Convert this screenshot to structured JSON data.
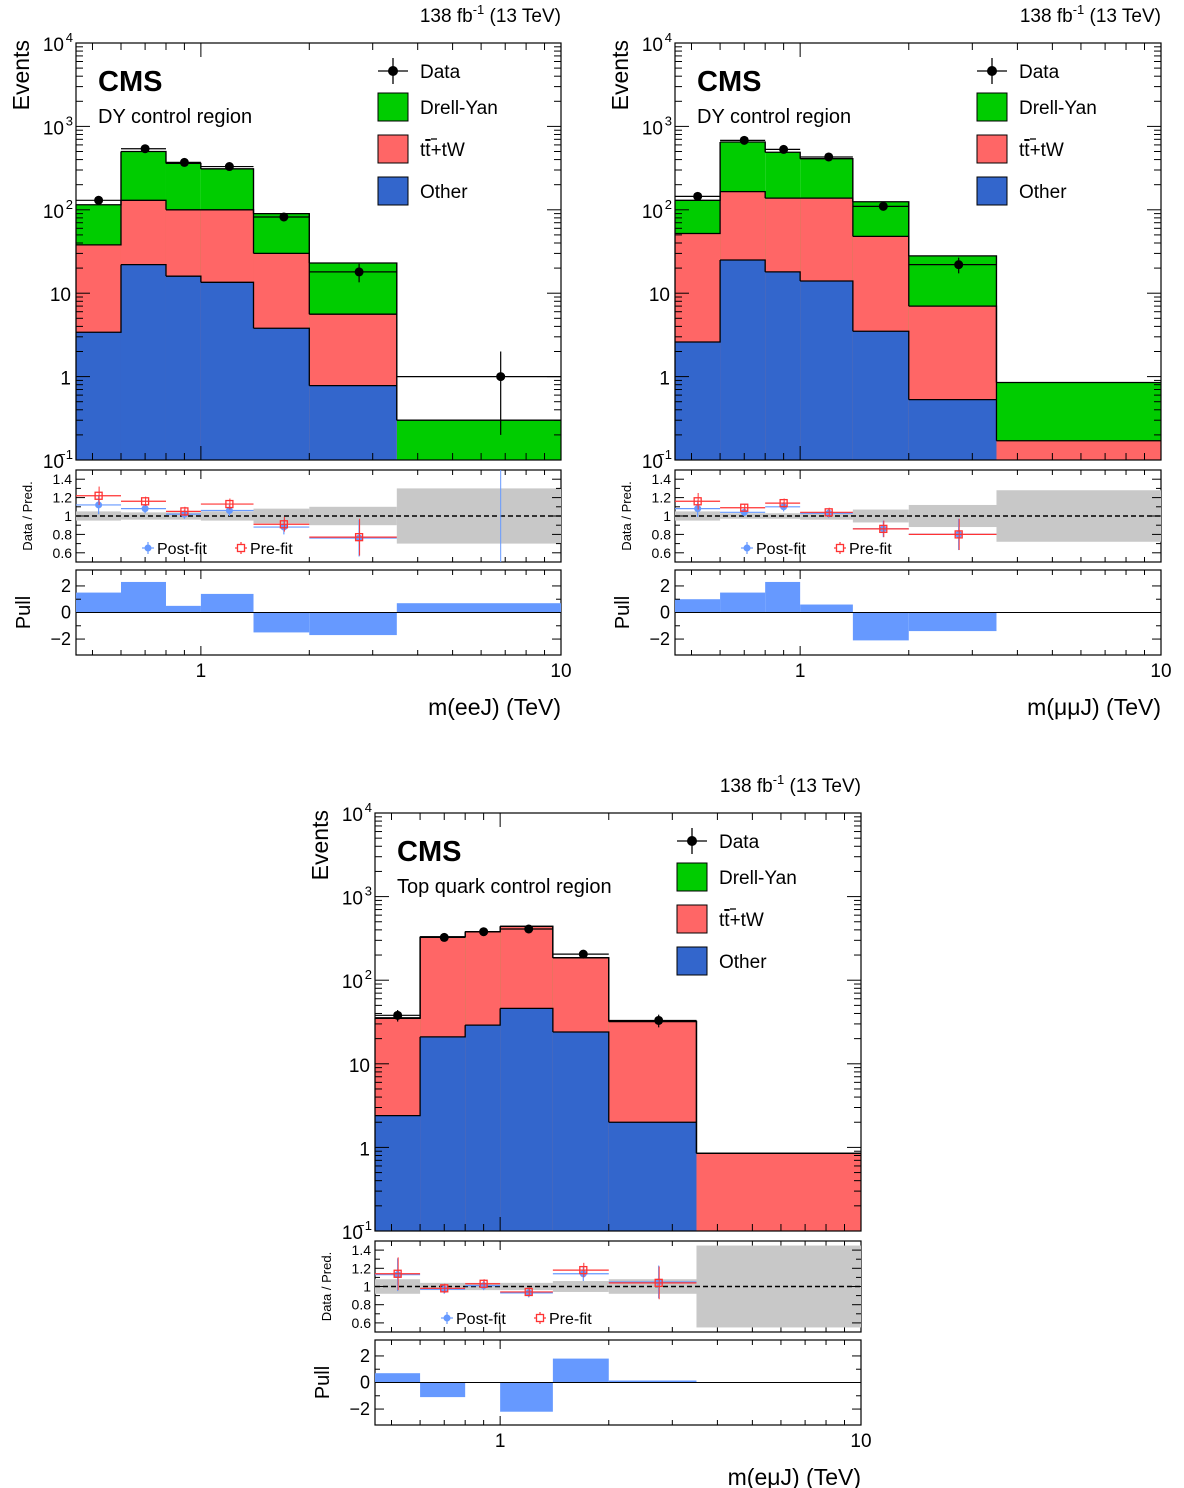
{
  "colors": {
    "drell_yan": "#00cc00",
    "ttbar_tw": "#ff6666",
    "other": "#3366cc",
    "data": "#000000",
    "post_fit": "#6699ff",
    "pre_fit": "#ff3333",
    "unc_band": "#c8c8c8"
  },
  "chart_data": [
    {
      "type": "stacked_histogram",
      "lumi_text": "138 fb",
      "lumi_sup": "-1",
      "energy_text": " (13 TeV)",
      "cms_label": "CMS",
      "region": "DY control region",
      "ylabel": "Events",
      "xlabel": "m(eeJ) (TeV)",
      "ratio_ylabel": "Data / Pred.",
      "pull_ylabel": "Pull",
      "x_scale": "log",
      "y_scale": "log",
      "xlim": [
        0.45,
        10
      ],
      "ylim": [
        0.1,
        10000
      ],
      "ratio_ylim": [
        0.5,
        1.5
      ],
      "pull_ylim": [
        -3.2,
        3.2
      ],
      "legend": {
        "data": "Data",
        "dy": "Drell-Yan",
        "tt_pre": "t",
        "tt_bar": "t",
        "tt_post": "+tW",
        "other": "Other"
      },
      "ratio_legend": {
        "post": "Post-fit",
        "pre": "Pre-fit"
      },
      "bins": [
        0.45,
        0.6,
        0.8,
        1.0,
        1.4,
        2.0,
        3.5,
        10.0
      ],
      "stack": {
        "other": [
          3.4,
          22,
          16,
          13.5,
          3.8,
          0.78,
          0
        ],
        "ttbar_tw": [
          38,
          130,
          100,
          100,
          30,
          5.6,
          0
        ],
        "drell_yan": [
          115,
          500,
          360,
          310,
          90,
          23,
          0.3
        ]
      },
      "data": {
        "x": [
          0.52,
          0.7,
          0.9,
          1.2,
          1.7,
          2.75,
          6.8
        ],
        "y": [
          130,
          540,
          370,
          330,
          82,
          18,
          1
        ],
        "yerr_lo": [
          12,
          24,
          19,
          18,
          9,
          4.5,
          0.8
        ],
        "yerr_hi": [
          12,
          24,
          19,
          18,
          9,
          4.5,
          1.0
        ],
        "xerr_bins": [
          0,
          1,
          2,
          3,
          4,
          5,
          6
        ]
      },
      "ratio": {
        "post": [
          1.12,
          1.08,
          1.02,
          1.06,
          0.88,
          0.76,
          null
        ],
        "pre": [
          1.22,
          1.16,
          1.05,
          1.13,
          0.91,
          0.77,
          null
        ],
        "err": [
          0.1,
          0.05,
          0.05,
          0.06,
          0.08,
          0.2,
          null
        ],
        "band": [
          0.05,
          0.04,
          0.04,
          0.05,
          0.08,
          0.1,
          0.3
        ]
      },
      "pull": [
        1.5,
        2.3,
        0.5,
        1.4,
        -1.5,
        -1.7,
        0.7
      ],
      "x_ticks": [
        1,
        10
      ],
      "x_tick_labels": [
        "1",
        "10"
      ]
    },
    {
      "type": "stacked_histogram",
      "lumi_text": "138 fb",
      "lumi_sup": "-1",
      "energy_text": " (13 TeV)",
      "cms_label": "CMS",
      "region": "DY control region",
      "ylabel": "Events",
      "xlabel": "m(μμJ) (TeV)",
      "ratio_ylabel": "Data / Pred.",
      "pull_ylabel": "Pull",
      "x_scale": "log",
      "y_scale": "log",
      "xlim": [
        0.45,
        10
      ],
      "ylim": [
        0.1,
        10000
      ],
      "ratio_ylim": [
        0.5,
        1.5
      ],
      "pull_ylim": [
        -3.2,
        3.2
      ],
      "legend": {
        "data": "Data",
        "dy": "Drell-Yan",
        "tt_pre": "t",
        "tt_bar": "t",
        "tt_post": "+tW",
        "other": "Other"
      },
      "ratio_legend": {
        "post": "Post-fit",
        "pre": "Pre-fit"
      },
      "bins": [
        0.45,
        0.6,
        0.8,
        1.0,
        1.4,
        2.0,
        3.5,
        10.0
      ],
      "stack": {
        "other": [
          2.6,
          25,
          18,
          14,
          3.5,
          0.53,
          0
        ],
        "ttbar_tw": [
          52,
          165,
          138,
          138,
          48,
          7,
          0.17
        ],
        "drell_yan": [
          130,
          650,
          490,
          410,
          125,
          28,
          0.85
        ]
      },
      "data": {
        "x": [
          0.52,
          0.7,
          0.9,
          1.2,
          1.7,
          2.75
        ],
        "y": [
          145,
          680,
          530,
          430,
          110,
          22
        ],
        "yerr_lo": [
          12,
          26,
          23,
          21,
          10,
          4.7
        ],
        "yerr_hi": [
          12,
          26,
          23,
          21,
          10,
          4.7
        ],
        "xerr_bins": [
          0,
          1,
          2,
          3,
          4,
          5
        ]
      },
      "ratio": {
        "post": [
          1.08,
          1.04,
          1.1,
          1.03,
          0.86,
          0.8,
          null
        ],
        "pre": [
          1.16,
          1.09,
          1.14,
          1.04,
          0.86,
          0.8,
          null
        ],
        "err": [
          0.09,
          0.04,
          0.05,
          0.05,
          0.09,
          0.17,
          null
        ],
        "band": [
          0.05,
          0.03,
          0.03,
          0.04,
          0.07,
          0.12,
          0.28
        ]
      },
      "pull": [
        1.0,
        1.5,
        2.3,
        0.6,
        -2.1,
        -1.4,
        0
      ],
      "x_ticks": [
        1,
        10
      ],
      "x_tick_labels": [
        "1",
        "10"
      ]
    },
    {
      "type": "stacked_histogram",
      "lumi_text": "138 fb",
      "lumi_sup": "-1",
      "energy_text": " (13 TeV)",
      "cms_label": "CMS",
      "region": "Top quark control region",
      "ylabel": "Events",
      "xlabel": "m(eμJ) (TeV)",
      "ratio_ylabel": "Data / Pred.",
      "pull_ylabel": "Pull",
      "x_scale": "log",
      "y_scale": "log",
      "xlim": [
        0.45,
        10
      ],
      "ylim": [
        0.1,
        10000
      ],
      "ratio_ylim": [
        0.5,
        1.5
      ],
      "pull_ylim": [
        -3.2,
        3.2
      ],
      "legend": {
        "data": "Data",
        "dy": "Drell-Yan",
        "tt_pre": "t",
        "tt_bar": "t",
        "tt_post": "+tW",
        "other": "Other"
      },
      "ratio_legend": {
        "post": "Post-fit",
        "pre": "Pre-fit"
      },
      "bins": [
        0.45,
        0.6,
        0.8,
        1.0,
        1.4,
        2.0,
        3.5,
        10.0
      ],
      "stack": {
        "other": [
          2.4,
          21,
          29,
          46,
          24,
          2,
          0
        ],
        "ttbar_tw": [
          35,
          330,
          380,
          440,
          185,
          32,
          0.85
        ],
        "drell_yan": [
          35.5,
          331,
          381,
          441,
          186,
          32.3,
          0.85
        ]
      },
      "data": {
        "x": [
          0.52,
          0.7,
          0.9,
          1.2,
          1.7,
          2.75
        ],
        "y": [
          38,
          325,
          380,
          410,
          205,
          33
        ],
        "yerr_lo": [
          6,
          18,
          19,
          20,
          14,
          5.7
        ],
        "yerr_hi": [
          6,
          18,
          19,
          20,
          14,
          5.7
        ],
        "xerr_bins": [
          0,
          1,
          2,
          3,
          4,
          5
        ]
      },
      "ratio": {
        "post": [
          1.13,
          0.97,
          1.01,
          0.93,
          1.14,
          1.05,
          null
        ],
        "pre": [
          1.14,
          0.98,
          1.03,
          0.94,
          1.18,
          1.04,
          null
        ],
        "err": [
          0.18,
          0.05,
          0.05,
          0.05,
          0.08,
          0.18,
          null
        ],
        "band": [
          0.08,
          0.04,
          0.04,
          0.04,
          0.06,
          0.08,
          0.45
        ]
      },
      "pull": [
        0.7,
        -1.1,
        0,
        -2.2,
        1.8,
        0.15,
        0
      ],
      "x_ticks": [
        1,
        10
      ],
      "x_tick_labels": [
        "1",
        "10"
      ]
    }
  ]
}
